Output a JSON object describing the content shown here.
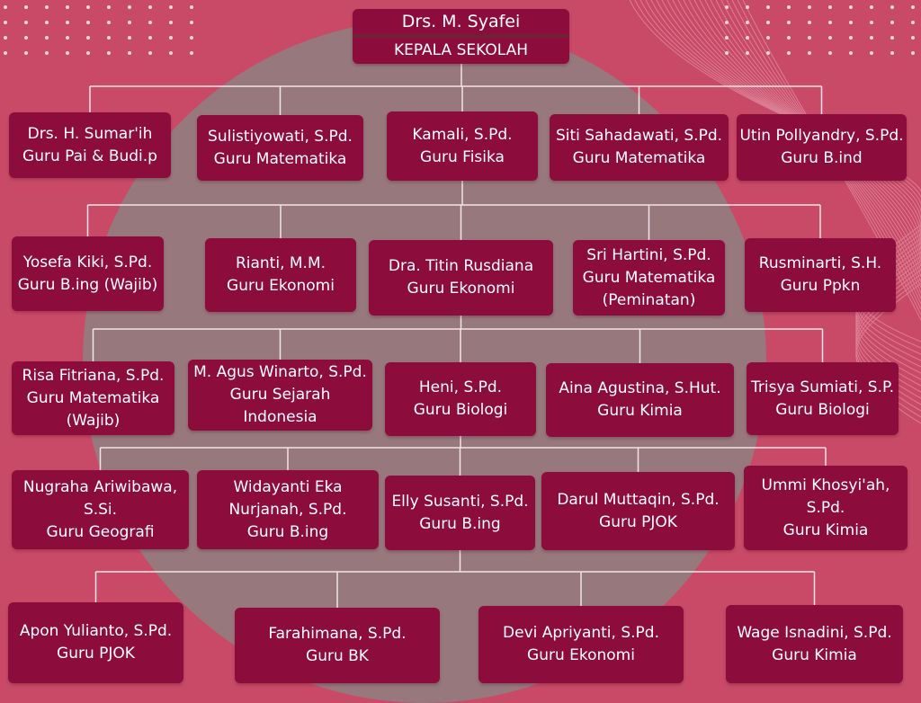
{
  "head": {
    "name": "Drs. M. Syafei",
    "title": "KEPALA SEKOLAH"
  },
  "rows": [
    [
      {
        "lines": [
          "Drs. H. Sumar'ih",
          "Guru Pai & Budi.p"
        ]
      },
      {
        "lines": [
          "Sulistiyowati, S.Pd.",
          "Guru Matematika"
        ]
      },
      {
        "lines": [
          "Kamali, S.Pd.",
          "Guru Fisika"
        ]
      },
      {
        "lines": [
          "Siti Sahadawati, S.Pd.",
          "Guru Matematika"
        ]
      },
      {
        "lines": [
          "Utin Pollyandry, S.Pd.",
          "Guru B.ind"
        ]
      }
    ],
    [
      {
        "lines": [
          "Yosefa Kiki, S.Pd.",
          "Guru B.ing (Wajib)"
        ]
      },
      {
        "lines": [
          "Rianti, M.M.",
          "Guru Ekonomi"
        ]
      },
      {
        "lines": [
          "Dra. Titin Rusdiana",
          "Guru Ekonomi"
        ]
      },
      {
        "lines": [
          "Sri Hartini, S.Pd.",
          "Guru Matematika",
          "(Peminatan)"
        ]
      },
      {
        "lines": [
          "Rusminarti, S.H.",
          "Guru Ppkn"
        ]
      }
    ],
    [
      {
        "lines": [
          "Risa Fitriana, S.Pd.",
          "Guru Matematika",
          "(Wajib)"
        ]
      },
      {
        "lines": [
          "M. Agus Winarto, S.Pd.",
          "Guru Sejarah",
          "Indonesia"
        ]
      },
      {
        "lines": [
          "Heni, S.Pd.",
          "Guru Biologi"
        ]
      },
      {
        "lines": [
          "Aina Agustina, S.Hut.",
          "Guru Kimia"
        ]
      },
      {
        "lines": [
          "Trisya Sumiati, S.P.",
          "Guru Biologi"
        ]
      }
    ],
    [
      {
        "lines": [
          "Nugraha Ariwibawa,",
          "S.Si.",
          "Guru Geografi"
        ]
      },
      {
        "lines": [
          "Widayanti Eka",
          "Nurjanah, S.Pd.",
          "Guru B.ing"
        ]
      },
      {
        "lines": [
          "Elly Susanti, S.Pd.",
          "Guru B.ing"
        ]
      },
      {
        "lines": [
          "Darul Muttaqin, S.Pd.",
          "Guru PJOK"
        ]
      },
      {
        "lines": [
          "Ummi Khosyi'ah,",
          "S.Pd.",
          "Guru Kimia"
        ]
      }
    ],
    [
      {
        "lines": [
          "Apon Yulianto, S.Pd.",
          "Guru PJOK"
        ]
      },
      {
        "lines": [
          "Farahimana, S.Pd.",
          "Guru BK"
        ]
      },
      {
        "lines": [
          "Devi Apriyanti, S.Pd.",
          "Guru Ekonomi"
        ]
      },
      {
        "lines": [
          "Wage Isnadini, S.Pd.",
          "Guru Kimia"
        ]
      }
    ]
  ]
}
